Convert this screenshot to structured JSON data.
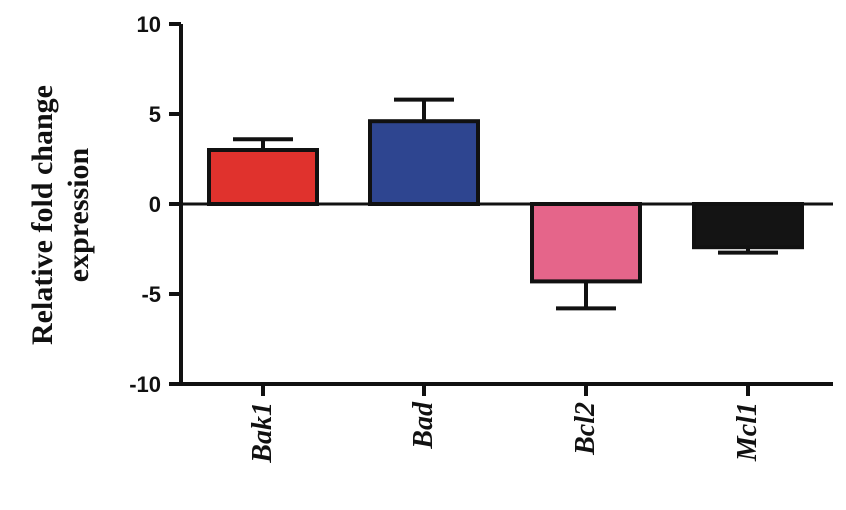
{
  "chart_data": {
    "type": "bar",
    "title": "",
    "xlabel": "",
    "ylabel_lines": [
      "Relative fold change",
      "expression"
    ],
    "categories": [
      "Bak1",
      "Bad",
      "Bcl2",
      "Mcl1"
    ],
    "values": [
      3.0,
      4.6,
      -4.3,
      -2.4
    ],
    "errors": [
      0.6,
      1.2,
      1.5,
      0.3
    ],
    "colors": [
      "#e0322d",
      "#2e4590",
      "#e5658a",
      "#141414"
    ],
    "ylim": [
      -10,
      10
    ],
    "yticks": [
      10,
      5,
      0,
      -5,
      -10
    ],
    "ytick_labels": [
      "10",
      "5",
      "0",
      "-5",
      "-10"
    ],
    "grid": false,
    "legend": "none"
  }
}
